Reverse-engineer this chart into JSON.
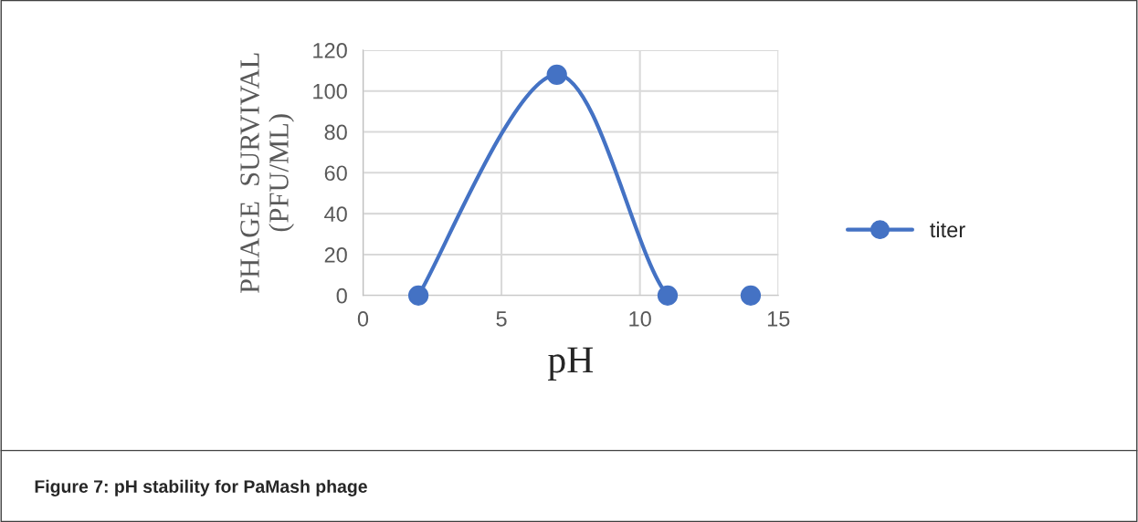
{
  "chart_data": {
    "type": "line",
    "xlabel": "pH",
    "ylabel": "PHAGE  SURVIVAL\n(PFU/ML)",
    "x": [
      2,
      7,
      11,
      14
    ],
    "series": [
      {
        "name": "titer",
        "color": "#4472c4",
        "values": [
          0,
          108,
          0,
          0
        ]
      }
    ],
    "xlim": [
      0,
      15
    ],
    "xticks": [
      0,
      5,
      10,
      15
    ],
    "ylim": [
      0,
      120
    ],
    "yticks": [
      0,
      20,
      40,
      60,
      80,
      100,
      120
    ],
    "grid": true,
    "legend": "right",
    "marker": "circle",
    "line_style": "solid",
    "annotations": [
      "Figure 7: pH stability for PaMash phage"
    ]
  }
}
